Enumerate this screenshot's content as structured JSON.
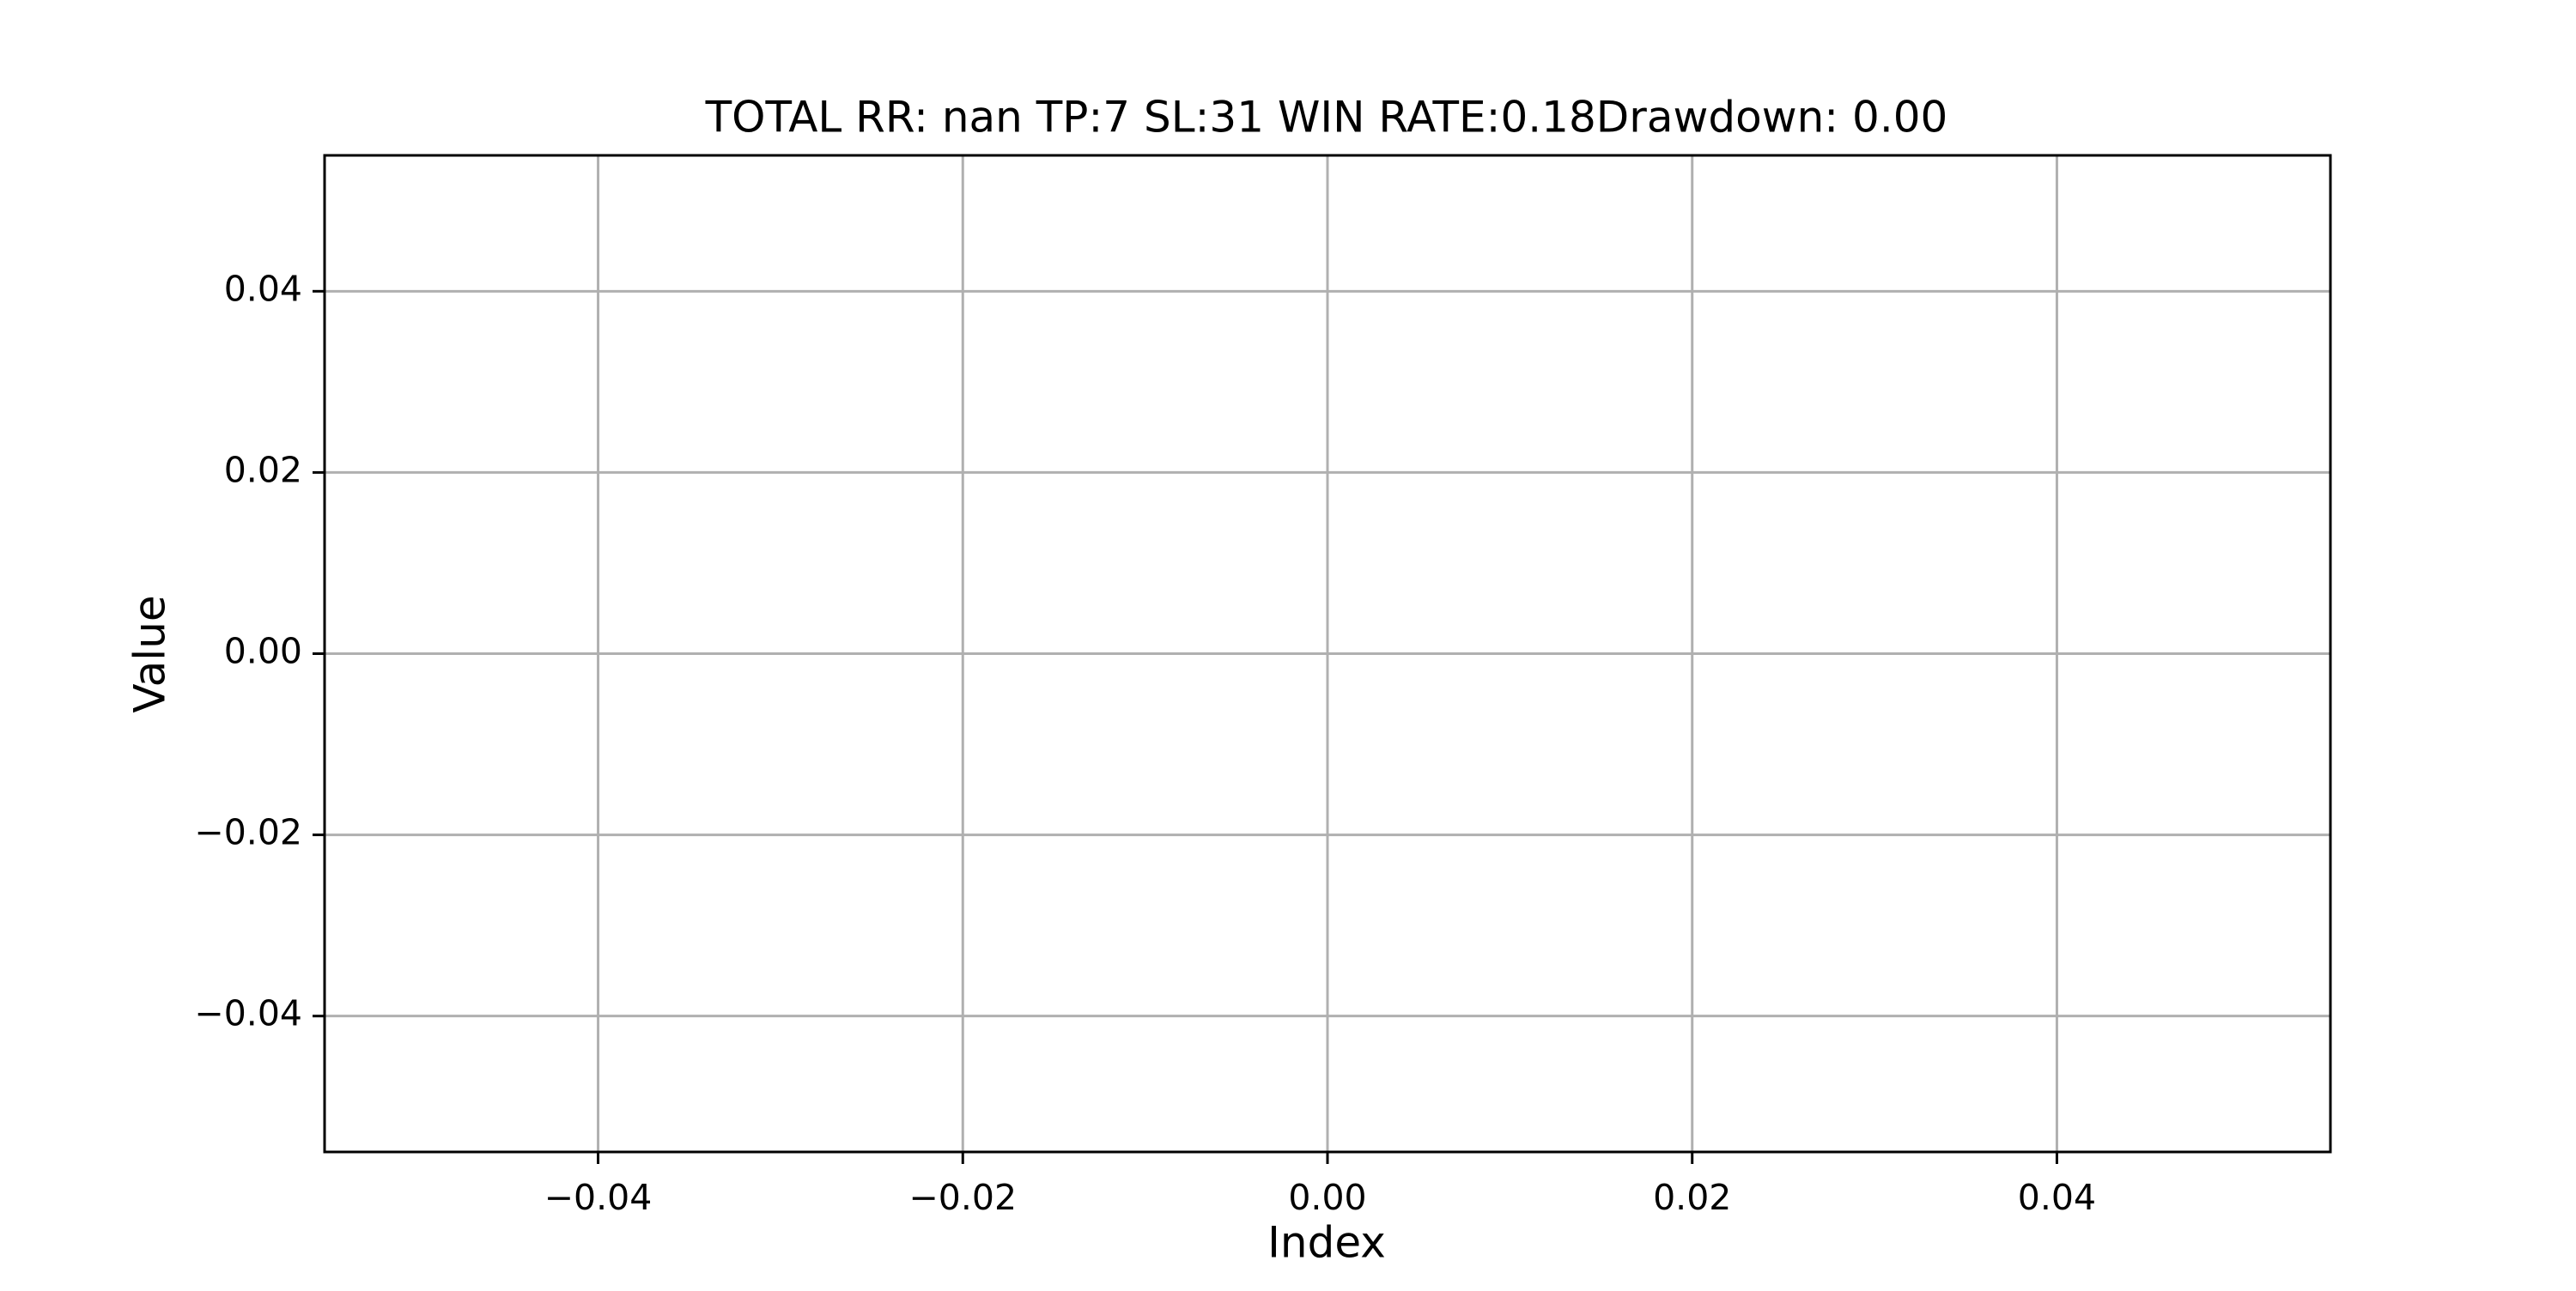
{
  "chart_data": {
    "type": "line",
    "title": "TOTAL RR: nan TP:7 SL:31 WIN RATE:0.18Drawdown: 0.00",
    "xlabel": "Index",
    "ylabel": "Value",
    "xlim": [
      -0.055,
      0.055
    ],
    "ylim": [
      -0.055,
      0.055
    ],
    "xticks": [
      -0.04,
      -0.02,
      0.0,
      0.02,
      0.04
    ],
    "yticks": [
      -0.04,
      -0.02,
      0.0,
      0.02,
      0.04
    ],
    "xtick_labels": [
      "−0.04",
      "−0.02",
      "0.00",
      "0.02",
      "0.04"
    ],
    "ytick_labels": [
      "−0.04",
      "−0.02",
      "0.00",
      "0.02",
      "0.04"
    ],
    "grid": true,
    "series": [
      {
        "values": []
      }
    ],
    "colors": {
      "grid": "#b0b0b0",
      "frame": "#000000",
      "text": "#000000",
      "background": "#ffffff"
    }
  }
}
